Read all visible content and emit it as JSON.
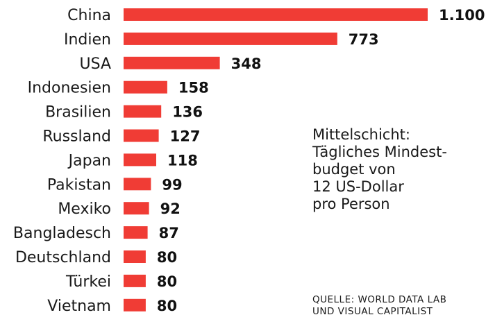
{
  "chart_data": {
    "type": "bar",
    "orientation": "horizontal",
    "categories": [
      "China",
      "Indien",
      "USA",
      "Indonesien",
      "Brasilien",
      "Russland",
      "Japan",
      "Pakistan",
      "Mexiko",
      "Bangladesch",
      "Deutschland",
      "Türkei",
      "Vietnam"
    ],
    "values": [
      1100,
      773,
      348,
      158,
      136,
      127,
      118,
      99,
      92,
      87,
      80,
      80,
      80
    ],
    "value_labels": [
      "1.100",
      "773",
      "348",
      "158",
      "136",
      "127",
      "118",
      "99",
      "92",
      "87",
      "80",
      "80",
      "80"
    ],
    "bar_color": "#f03c35",
    "title": "",
    "xlabel": "",
    "ylabel": "",
    "xlim": [
      0,
      1100
    ],
    "grid": false,
    "legend": "none"
  },
  "annotation": {
    "lines": [
      "Mittelschicht:",
      "Tägliches Mindest-",
      "budget von",
      "12 US-Dollar",
      "pro Person"
    ]
  },
  "source": {
    "lines": [
      "QUELLE: WORLD DATA LAB",
      "UND VISUAL CAPITALIST"
    ]
  }
}
